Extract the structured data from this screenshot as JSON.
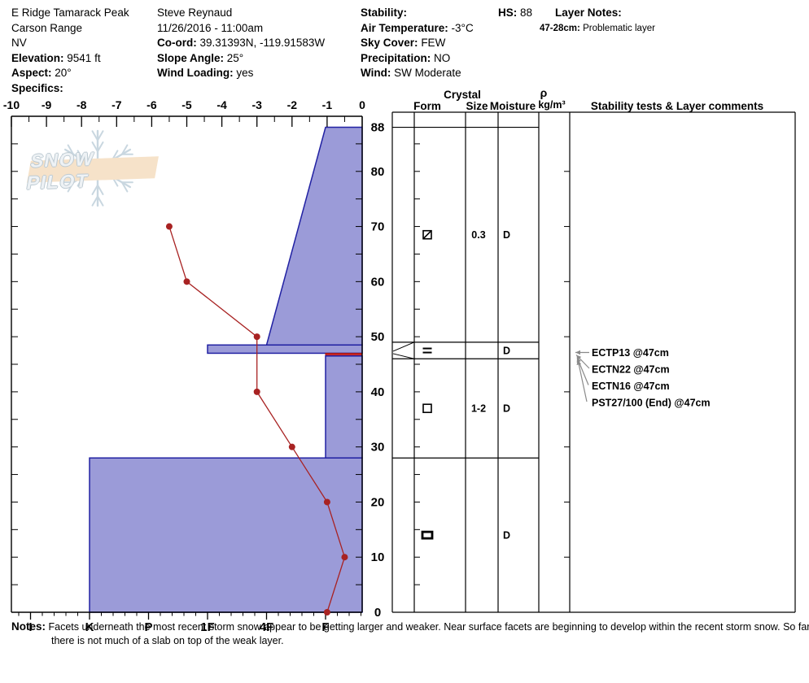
{
  "header": {
    "columns": [
      {
        "lines": [
          {
            "b": "",
            "t": "E Ridge Tamarack Peak"
          },
          {
            "b": "",
            "t": "Carson Range"
          },
          {
            "b": "",
            "t": "NV"
          },
          {
            "b": "Elevation:",
            "t": "9541 ft"
          },
          {
            "b": "Aspect:",
            "t": "20°"
          },
          {
            "b": "Specifics:",
            "t": ""
          }
        ]
      },
      {
        "lines": [
          {
            "b": "",
            "t": "Steve Reynaud"
          },
          {
            "b": "",
            "t": "11/26/2016 - 11:00am"
          },
          {
            "b": "Co-ord:",
            "t": "39.31393N, -119.91583W"
          },
          {
            "b": "Slope Angle:",
            "t": "25°"
          },
          {
            "b": "Wind Loading:",
            "t": "yes"
          }
        ]
      },
      {
        "lines": [
          {
            "b": "Stability:",
            "t": ""
          },
          {
            "b": "Air Temperature:",
            "t": "-3°C"
          },
          {
            "b": "Sky Cover:",
            "t": "FEW"
          },
          {
            "b": "Precipitation:",
            "t": "NO"
          },
          {
            "b": "Wind:",
            "t": "SW Moderate"
          }
        ]
      },
      {
        "lines": [
          {
            "b": "HS:",
            "t": "88"
          }
        ]
      },
      {
        "lines": [
          {
            "b": "Layer Notes:",
            "t": ""
          },
          {
            "b": "47-28cm:",
            "t": "Problematic layer"
          }
        ]
      }
    ]
  },
  "watermark": {
    "text": "SNOW PILOT"
  },
  "notes": {
    "label": "Notes:",
    "text": "Facets underneath the most recent storm snow appear to be getting larger and weaker.  Near surface facets are beginning to develop within the recent storm snow.  So far, there is not much of a slab on top of the weak layer."
  },
  "chart_data": {
    "type": "snow-profile",
    "temp_axis": {
      "label_unit": "°C",
      "min": -10,
      "max": 0,
      "ticks": [
        -10,
        -9,
        -8,
        -7,
        -6,
        -5,
        -4,
        -3,
        -2,
        -1,
        0
      ],
      "minor_step": 0.5
    },
    "depth_axis": {
      "min": 0,
      "max": 90,
      "surface": 88,
      "major_ticks": [
        0,
        10,
        20,
        30,
        40,
        50,
        60,
        70,
        80
      ],
      "surface_label": "88",
      "minor_step": 5
    },
    "hardness_axis": {
      "categories": [
        "I",
        "K",
        "P",
        "1F",
        "4F",
        "F"
      ]
    },
    "layers": [
      {
        "from": 88,
        "to": 48.5,
        "shape": "trapezoid",
        "hardness_top": "F",
        "hardness_bottom": "4F",
        "flagged": false
      },
      {
        "from": 48.5,
        "to": 47,
        "shape": "rect",
        "hardness": "1F",
        "flagged": false
      },
      {
        "from": 47,
        "to": 46.5,
        "shape": "rect",
        "hardness": "F",
        "flagged": true
      },
      {
        "from": 46.5,
        "to": 28,
        "shape": "rect",
        "hardness": "F",
        "flagged": false
      },
      {
        "from": 28,
        "to": 0,
        "shape": "rect",
        "hardness": "K",
        "flagged": false
      }
    ],
    "temperature_profile": [
      {
        "depth": 70,
        "temp": -5.5
      },
      {
        "depth": 60,
        "temp": -5.0
      },
      {
        "depth": 50,
        "temp": -3.0
      },
      {
        "depth": 40,
        "temp": -3.0
      },
      {
        "depth": 30,
        "temp": -2.0
      },
      {
        "depth": 20,
        "temp": -1.0
      },
      {
        "depth": 10,
        "temp": -0.5
      },
      {
        "depth": 0,
        "temp": -1.0
      }
    ],
    "table_headers": {
      "crystal": "Crystal",
      "form": "Form",
      "size": "Size",
      "moisture": "Moisture",
      "rho": "ρ",
      "rho_units": "kg/m³",
      "comments": "Stability tests & Layer comments"
    },
    "layer_rows": [
      {
        "from": 88,
        "to": 49,
        "form": "square-slash",
        "form_char": "⧄",
        "size": "0.3",
        "moisture": "D"
      },
      {
        "from": 49,
        "to": 46,
        "form": "equals",
        "form_char": "=",
        "size": "",
        "moisture": "D"
      },
      {
        "from": 46,
        "to": 28,
        "form": "square",
        "form_char": "□",
        "size": "1-2",
        "moisture": "D"
      },
      {
        "from": 28,
        "to": 0,
        "form": "bold-rect",
        "form_char": "▭",
        "size": "",
        "moisture": "D"
      }
    ],
    "flag_depth": 47,
    "tests": [
      {
        "label": "ECTP13 @47cm"
      },
      {
        "label": "ECTN22 @47cm"
      },
      {
        "label": "ECTN16 @47cm"
      },
      {
        "label": "PST27/100 (End) @47cm"
      }
    ]
  },
  "colors": {
    "layer_fill": "#9b9bd8",
    "layer_border": "#2121a3",
    "flag_fill": "#c42525",
    "flag_border": "#a01515",
    "temp_line": "#a82222",
    "axis": "#000000",
    "test_arrow": "#8a8a8a",
    "watermark_band": "#f6e2c9",
    "watermark_text": "#eef2f5",
    "watermark_outline": "#bcc9d1",
    "watermark_flake": "#c9d7e0"
  }
}
